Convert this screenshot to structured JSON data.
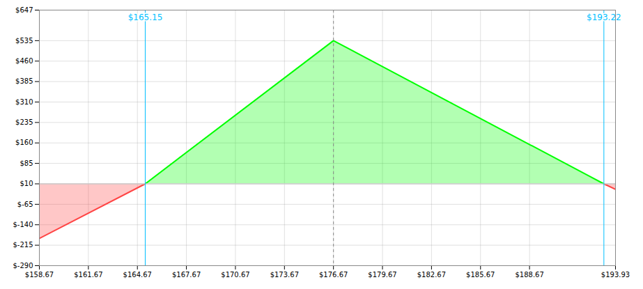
{
  "chart_data": {
    "type": "line",
    "x": [
      158.67,
      165.15,
      176.67,
      193.22,
      193.93
    ],
    "series": [
      {
        "color": "#ff4444",
        "values": [
          -190,
          10,
          null,
          10,
          -10
        ]
      },
      {
        "color": "#00ff00",
        "values": [
          null,
          10,
          535,
          10,
          null
        ]
      }
    ],
    "baseline": {
      "y": 10,
      "color": "#cccccc"
    },
    "vlines": [
      {
        "x": 176.67,
        "color": "#888888",
        "line_style": "dashed"
      },
      {
        "x": 165.15,
        "color": "#00bfff",
        "line_style": "solid"
      },
      {
        "x": 193.22,
        "color": "#00bfff",
        "line_style": "solid"
      }
    ],
    "annotations": [
      {
        "x": 165.15,
        "text": "$165.15",
        "color": "#00bfff"
      },
      {
        "x": 193.22,
        "text": "$193.22",
        "color": "#00bfff"
      }
    ],
    "xlim": [
      158.67,
      193.93
    ],
    "xticks": [
      {
        "value": 158.67,
        "label": "$158.67"
      },
      {
        "value": 161.67,
        "label": "$161.67"
      },
      {
        "value": 164.67,
        "label": "$164.67"
      },
      {
        "value": 167.67,
        "label": "$167.67"
      },
      {
        "value": 170.67,
        "label": "$170.67"
      },
      {
        "value": 173.67,
        "label": "$173.67"
      },
      {
        "value": 176.67,
        "label": "$176.67"
      },
      {
        "value": 179.67,
        "label": "$179.67"
      },
      {
        "value": 182.67,
        "label": "$182.67"
      },
      {
        "value": 185.67,
        "label": "$185.67"
      },
      {
        "value": 188.67,
        "label": "$188.67"
      },
      {
        "value": 193.93,
        "label": "$193.93"
      }
    ],
    "ylim": [
      -290,
      647
    ],
    "yticks": [
      {
        "value": 647,
        "label": "$647"
      },
      {
        "value": 535,
        "label": "$535"
      },
      {
        "value": 460,
        "label": "$460"
      },
      {
        "value": 385,
        "label": "$385"
      },
      {
        "value": 310,
        "label": "$310"
      },
      {
        "value": 235,
        "label": "$235"
      },
      {
        "value": 160,
        "label": "$160"
      },
      {
        "value": 85,
        "label": "$85"
      },
      {
        "value": 10,
        "label": "$10"
      },
      {
        "value": -65,
        "label": "$-65"
      },
      {
        "value": -140,
        "label": "$-140"
      },
      {
        "value": -215,
        "label": "$-215"
      },
      {
        "value": -290,
        "label": "$-290"
      }
    ],
    "grid": true
  }
}
